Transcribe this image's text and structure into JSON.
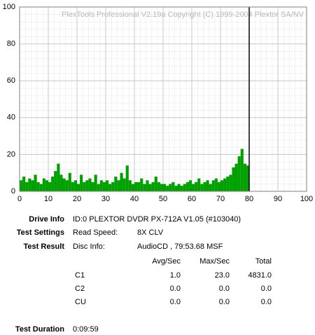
{
  "chart_data": {
    "type": "bar",
    "watermark": "PlexTools Professional V2.19a Copyright (C) 1999-2004 Plextor SA/NV",
    "x": [
      0,
      1,
      2,
      3,
      4,
      5,
      6,
      7,
      8,
      9,
      10,
      11,
      12,
      13,
      14,
      15,
      16,
      17,
      18,
      19,
      20,
      21,
      22,
      23,
      24,
      25,
      26,
      27,
      28,
      29,
      30,
      31,
      32,
      33,
      34,
      35,
      36,
      37,
      38,
      39,
      40,
      41,
      42,
      43,
      44,
      45,
      46,
      47,
      48,
      49,
      50,
      51,
      52,
      53,
      54,
      55,
      56,
      57,
      58,
      59,
      60,
      61,
      62,
      63,
      64,
      65,
      66,
      67,
      68,
      69,
      70,
      71,
      72,
      73,
      74,
      75,
      76,
      77,
      78,
      79
    ],
    "series": [
      {
        "name": "C1",
        "color": "#00a000",
        "values": [
          6,
          8,
          5,
          7,
          6,
          9,
          5,
          4,
          7,
          6,
          5,
          8,
          11,
          15,
          9,
          7,
          6,
          10,
          5,
          6,
          4,
          9,
          5,
          6,
          7,
          5,
          9,
          4,
          6,
          5,
          6,
          4,
          5,
          8,
          6,
          10,
          7,
          14,
          6,
          4,
          5,
          5,
          7,
          4,
          6,
          4,
          5,
          8,
          5,
          4,
          4,
          3,
          4,
          5,
          3,
          4,
          3,
          4,
          5,
          6,
          4,
          5,
          7,
          4,
          5,
          6,
          4,
          6,
          7,
          5,
          6,
          7,
          8,
          9,
          13,
          15,
          19,
          23,
          15,
          14
        ]
      }
    ],
    "marker_x": 80,
    "xlim": [
      0,
      100
    ],
    "xticks": [
      0,
      10,
      20,
      30,
      40,
      50,
      60,
      70,
      80,
      90,
      100
    ],
    "ylim": [
      0,
      100
    ],
    "yticks": [
      0,
      20,
      40,
      60,
      80,
      100
    ],
    "grid": true
  },
  "info": {
    "drive_info": {
      "label": "Drive Info",
      "value": "ID:0 PLEXTOR DVDR PX-712A V1.05 (#103040)"
    },
    "test_settings": {
      "label": "Test Settings",
      "key": "Read Speed:",
      "value": "8X CLV"
    },
    "test_result": {
      "label": "Test Result",
      "key": "Disc Info:",
      "value": "AudioCD , 79:53.68 MSF"
    },
    "stats": {
      "headers": [
        "Avg/Sec",
        "Max/Sec",
        "Total"
      ],
      "rows": [
        [
          "C1",
          "1.0",
          "23.0",
          "4831.0"
        ],
        [
          "C2",
          "0.0",
          "0.0",
          "0.0"
        ],
        [
          "CU",
          "0.0",
          "0.0",
          "0.0"
        ]
      ]
    },
    "test_duration": {
      "label": "Test Duration",
      "value": "0:09:59"
    }
  }
}
